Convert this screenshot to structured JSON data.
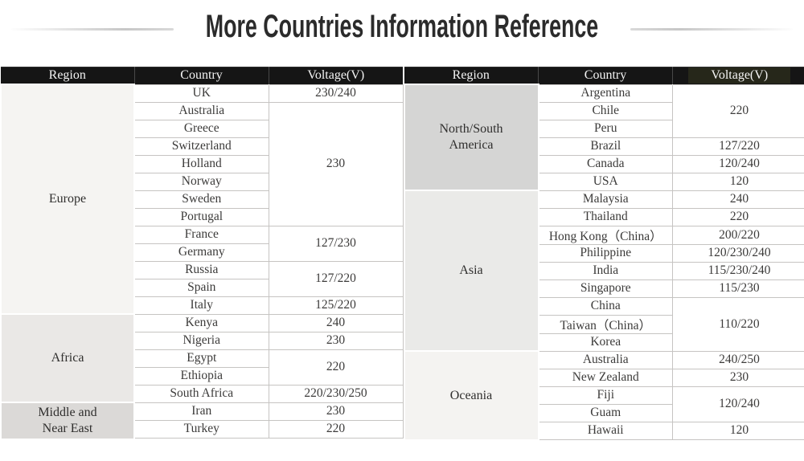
{
  "title": "More Countries Information Reference",
  "colors": {
    "header_bg": "#151515",
    "header_text": "#f4f4f4",
    "voltage_header_highlight": "#26271a",
    "cell_border": "#c6c4c2",
    "title_text": "#2b2b2b"
  },
  "table": {
    "headers": [
      "Region",
      "Country",
      "Voltage(V)"
    ],
    "halves": [
      {
        "regions": [
          {
            "name": "Europe",
            "bg": "#f5f4f2",
            "groups": [
              {
                "countries": [
                  "UK"
                ],
                "voltage": "230/240"
              },
              {
                "countries": [
                  "Australia",
                  "Greece",
                  "Switzerland",
                  "Holland",
                  "Norway",
                  "Sweden",
                  "Portugal"
                ],
                "voltage": "230"
              },
              {
                "countries": [
                  "France",
                  "Germany"
                ],
                "voltage": "127/230"
              },
              {
                "countries": [
                  "Russia",
                  "Spain"
                ],
                "voltage": "127/220"
              },
              {
                "countries": [
                  "Italy"
                ],
                "voltage": "125/220"
              }
            ]
          },
          {
            "name": "Africa",
            "bg": "#eae8e6",
            "groups": [
              {
                "countries": [
                  "Kenya"
                ],
                "voltage": "240"
              },
              {
                "countries": [
                  "Nigeria"
                ],
                "voltage": "230"
              },
              {
                "countries": [
                  "Egypt",
                  "Ethiopia"
                ],
                "voltage": "220"
              },
              {
                "countries": [
                  "South Africa"
                ],
                "voltage": "220/230/250"
              }
            ]
          },
          {
            "name": "Middle and Near East",
            "bg": "#dbd9d7",
            "groups": [
              {
                "countries": [
                  "Iran"
                ],
                "voltage": "230"
              },
              {
                "countries": [
                  "Turkey"
                ],
                "voltage": "220"
              }
            ]
          }
        ]
      },
      {
        "regions": [
          {
            "name": "North/South America",
            "bg": "#d5d5d4",
            "groups": [
              {
                "countries": [
                  "Argentina",
                  "Chile",
                  "Peru"
                ],
                "voltage": "220"
              },
              {
                "countries": [
                  "Brazil"
                ],
                "voltage": "127/220"
              },
              {
                "countries": [
                  "Canada"
                ],
                "voltage": "120/240"
              },
              {
                "countries": [
                  "USA"
                ],
                "voltage": "120"
              }
            ]
          },
          {
            "name": "Asia",
            "bg": "#eaeae8",
            "groups": [
              {
                "countries": [
                  "Malaysia"
                ],
                "voltage": "240"
              },
              {
                "countries": [
                  "Thailand"
                ],
                "voltage": "220"
              },
              {
                "countries": [
                  "Hong Kong（China）"
                ],
                "voltage": "200/220"
              },
              {
                "countries": [
                  "Philippine"
                ],
                "voltage": "120/230/240"
              },
              {
                "countries": [
                  "India"
                ],
                "voltage": "115/230/240"
              },
              {
                "countries": [
                  "Singapore"
                ],
                "voltage": "115/230"
              },
              {
                "countries": [
                  "China",
                  "Taiwan（China）",
                  "Korea"
                ],
                "voltage": "110/220"
              }
            ]
          },
          {
            "name": "Oceania",
            "bg": "#f4f3f1",
            "groups": [
              {
                "countries": [
                  "Australia"
                ],
                "voltage": "240/250"
              },
              {
                "countries": [
                  "New Zealand"
                ],
                "voltage": "230"
              },
              {
                "countries": [
                  "Fiji",
                  "Guam"
                ],
                "voltage": "120/240"
              },
              {
                "countries": [
                  "Hawaii"
                ],
                "voltage": "120"
              }
            ]
          }
        ]
      }
    ]
  }
}
